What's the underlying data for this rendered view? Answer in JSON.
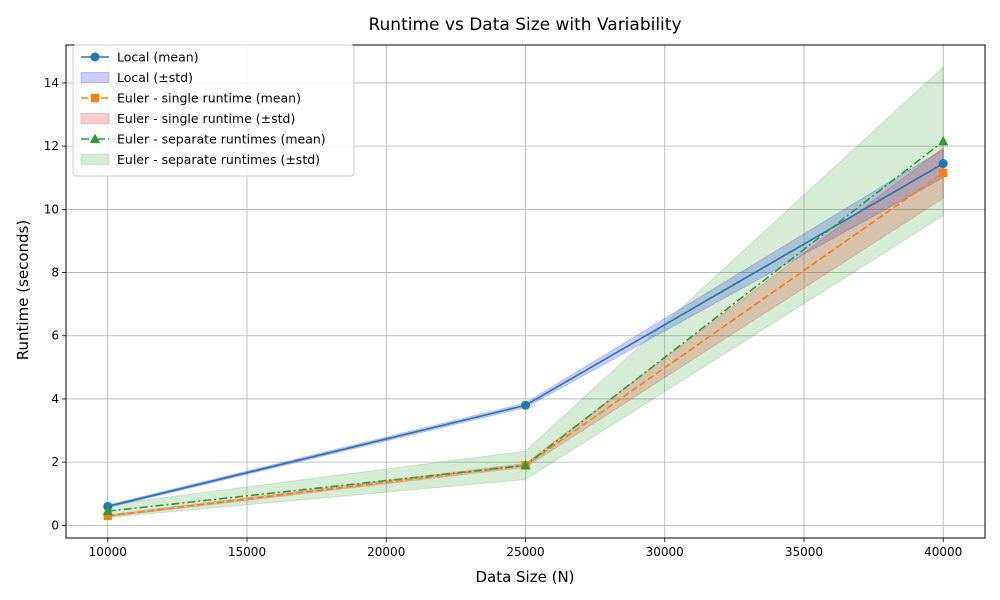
{
  "chart_data": {
    "type": "line",
    "title": "Runtime vs Data Size with Variability",
    "xlabel": "Data Size (N)",
    "ylabel": "Runtime (seconds)",
    "xlim": [
      8500,
      41500
    ],
    "ylim": [
      -0.4,
      15.2
    ],
    "xticks": [
      10000,
      15000,
      20000,
      25000,
      30000,
      35000,
      40000
    ],
    "yticks": [
      0,
      2,
      4,
      6,
      8,
      10,
      12,
      14
    ],
    "grid": true,
    "legend_position": "top-left",
    "x": [
      10000,
      25000,
      40000
    ],
    "series": [
      {
        "name": "Local (mean)",
        "band_name": "Local (±std)",
        "values": [
          0.6,
          3.8,
          11.45
        ],
        "std": [
          0.04,
          0.07,
          0.45
        ],
        "color": "#1f77b4",
        "band_color": "#0000ff",
        "marker": "circle",
        "line_style": "solid"
      },
      {
        "name": "Euler - single runtime (mean)",
        "band_name": "Euler - single runtime (±std)",
        "values": [
          0.3,
          1.9,
          11.15
        ],
        "std": [
          0.03,
          0.06,
          0.8
        ],
        "color": "#ff7f0e",
        "band_color": "#ff0000",
        "marker": "square",
        "line_style": "dashed"
      },
      {
        "name": "Euler - separate runtimes (mean)",
        "band_name": "Euler - separate runtimes (±std)",
        "values": [
          0.45,
          1.9,
          12.15
        ],
        "std": [
          0.2,
          0.45,
          2.35
        ],
        "color": "#2ca02c",
        "band_color": "#2ca02c",
        "marker": "triangle",
        "line_style": "dashdot"
      }
    ]
  }
}
